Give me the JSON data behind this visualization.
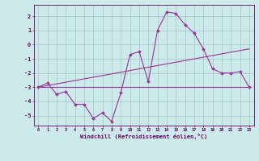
{
  "bg_color": "#cceaea",
  "grid_color": "#aacccc",
  "line_color": "#993399",
  "marker_color": "#993399",
  "xlabel": "Windchill (Refroidissement éolien,°C)",
  "xlabel_color": "#660066",
  "tick_color": "#660066",
  "ylabel_ticks": [
    2,
    1,
    0,
    -1,
    -2,
    -3,
    -4,
    -5
  ],
  "xlim": [
    -0.5,
    23.5
  ],
  "ylim": [
    -5.7,
    2.8
  ],
  "xtick_labels": [
    "0",
    "1",
    "2",
    "3",
    "4",
    "5",
    "6",
    "7",
    "8",
    "9",
    "10",
    "11",
    "12",
    "13",
    "14",
    "15",
    "16",
    "17",
    "18",
    "19",
    "20",
    "21",
    "22",
    "23"
  ],
  "series1_x": [
    0,
    1,
    2,
    3,
    4,
    5,
    6,
    7,
    8,
    9,
    10,
    11,
    12,
    13,
    14,
    15,
    16,
    17,
    18,
    19,
    20,
    21,
    22,
    23
  ],
  "series1_y": [
    -3.0,
    -2.7,
    -3.5,
    -3.3,
    -4.2,
    -4.2,
    -5.2,
    -4.8,
    -5.4,
    -3.4,
    -0.7,
    -0.5,
    -2.6,
    1.0,
    2.3,
    2.2,
    1.4,
    0.8,
    -0.3,
    -1.7,
    -2.0,
    -2.0,
    -1.9,
    -3.0
  ],
  "series2_x": [
    0,
    23
  ],
  "series2_y": [
    -3.0,
    -3.0
  ],
  "series3_x": [
    0,
    23
  ],
  "series3_y": [
    -3.0,
    -0.3
  ]
}
